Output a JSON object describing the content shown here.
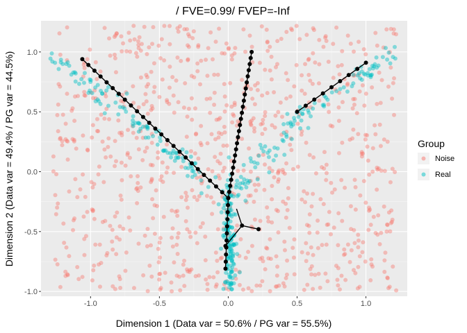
{
  "chart_data": {
    "type": "scatter",
    "title": "/ FVE=0.99/ FVEP=-Inf",
    "xlabel": "Dimension 1 (Data var = 50.6% / PG var = 55.5%)",
    "ylabel": "Dimension 2 (Data var = 49.4% / PG var = 44.5%)",
    "xlim": [
      -1.36,
      1.3
    ],
    "ylim": [
      -1.04,
      1.26
    ],
    "x_ticks": [
      -1.0,
      -0.5,
      0.0,
      0.5,
      1.0
    ],
    "x_tick_labels": [
      "-1.0",
      "-0.5",
      "0.0",
      "0.5",
      "1.0"
    ],
    "y_ticks": [
      -1.0,
      -0.5,
      0.0,
      0.5,
      1.0
    ],
    "y_tick_labels": [
      "-1.0",
      "-0.5",
      "0.0",
      "0.5",
      "1.0"
    ],
    "grid": true,
    "background": "#ebebeb",
    "legend": {
      "title": "Group",
      "position": "right",
      "entries": [
        {
          "label": "Noise",
          "color": "#F8766D"
        },
        {
          "label": "Real",
          "color": "#00BFC4"
        }
      ]
    },
    "series": [
      {
        "name": "Noise",
        "color": "#F8766D",
        "count": 900,
        "distribution": "uniform",
        "x_range": [
          -1.27,
          1.22
        ],
        "y_range": [
          -1.0,
          1.22
        ]
      },
      {
        "name": "Real",
        "color": "#00BFC4",
        "branches": [
          {
            "from": [
              0.0,
              -0.22
            ],
            "to": [
              -1.28,
              0.98
            ],
            "count": 110,
            "spread": 0.045
          },
          {
            "from": [
              0.0,
              -0.22
            ],
            "to": [
              0.52,
              0.48
            ],
            "count": 70,
            "spread": 0.045
          },
          {
            "from": [
              0.52,
              0.48
            ],
            "to": [
              1.22,
              1.0
            ],
            "count": 55,
            "spread": 0.04
          },
          {
            "from": [
              0.0,
              -0.22
            ],
            "to": [
              0.02,
              -0.99
            ],
            "count": 130,
            "spread": 0.022
          }
        ]
      }
    ],
    "principal_graph": {
      "color": "#000000",
      "segments": [
        {
          "from": [
            -1.06,
            0.94
          ],
          "to": [
            0.0,
            -0.22
          ],
          "nodes": 24
        },
        {
          "from": [
            0.0,
            -0.22
          ],
          "to": [
            0.17,
            1.0
          ],
          "nodes": 24
        },
        {
          "from": [
            0.5,
            0.5
          ],
          "to": [
            1.0,
            0.91
          ],
          "nodes": 8
        },
        {
          "from": [
            0.0,
            -0.22
          ],
          "to": [
            -0.02,
            -0.81
          ],
          "nodes": 10
        }
      ],
      "extra_edges": [
        [
          [
            0.06,
            -0.31
          ],
          [
            0.1,
            -0.45
          ]
        ],
        [
          [
            0.1,
            -0.45
          ],
          [
            0.22,
            -0.48
          ]
        ],
        [
          [
            0.1,
            -0.45
          ],
          [
            -0.02,
            -0.62
          ]
        ]
      ]
    }
  }
}
